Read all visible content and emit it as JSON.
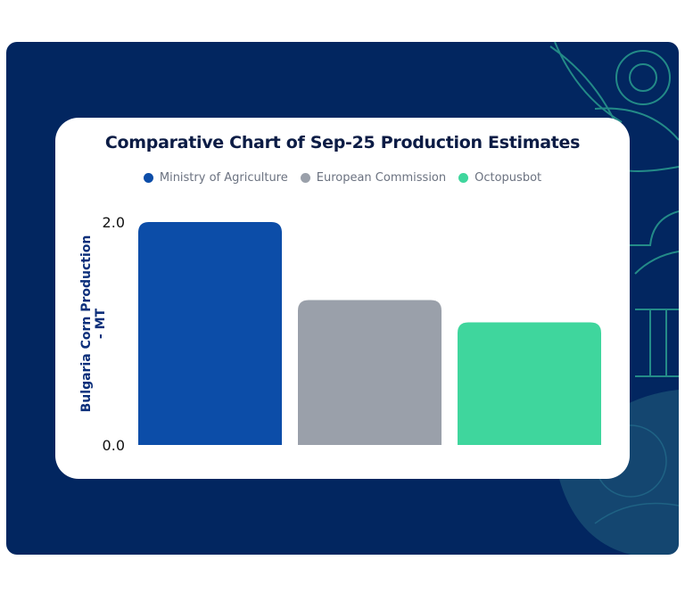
{
  "chart_data": {
    "type": "bar",
    "title": "Comparative Chart of Sep-25 Production Estimates",
    "xlabel": "",
    "ylabel": "Bulgaria Corn Production - MT",
    "categories": [
      "Ministry of Agriculture",
      "European Commission",
      "Octopusbot"
    ],
    "values": [
      2.0,
      1.3,
      1.1
    ],
    "colors": [
      "#0c4da8",
      "#9aa0aa",
      "#3fd69d"
    ],
    "ylim": [
      0,
      2.0
    ],
    "yticks": [
      "0.0",
      "2.0"
    ],
    "grid": false,
    "legend": {
      "position": "top-center",
      "entries": [
        {
          "label": "Ministry of Agriculture",
          "color": "#0c4da8"
        },
        {
          "label": "European Commission",
          "color": "#9aa0aa"
        },
        {
          "label": "Octopusbot",
          "color": "#3fd69d"
        }
      ]
    }
  },
  "theme": {
    "background": "#022660",
    "accent": "#2a9d8f",
    "title_color": "#0c1c45"
  }
}
